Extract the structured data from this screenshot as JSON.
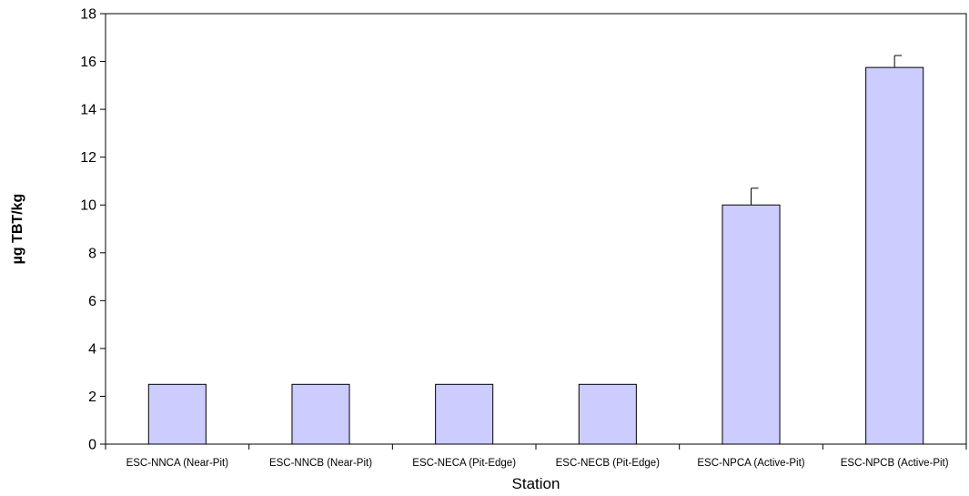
{
  "chart_data": {
    "type": "bar",
    "title": "",
    "xlabel": "Station",
    "ylabel": "µg TBT/kg",
    "ylim": [
      0,
      18
    ],
    "yticks": [
      0,
      2,
      4,
      6,
      8,
      10,
      12,
      14,
      16,
      18
    ],
    "grid": false,
    "legend": "none",
    "bar_color": "#ccccff",
    "bar_edge_color": "#000000",
    "categories": [
      "ESC-NNCA (Near-Pit)",
      "ESC-NNCB (Near-Pit)",
      "ESC-NECA (Pit-Edge)",
      "ESC-NECB (Pit-Edge)",
      "ESC-NPCA (Active-Pit)",
      "ESC-NPCB (Active-Pit)"
    ],
    "values": [
      2.5,
      2.5,
      2.5,
      2.5,
      10.0,
      15.75
    ],
    "error_upper": [
      0,
      0,
      0,
      0,
      0.7,
      0.5
    ]
  }
}
